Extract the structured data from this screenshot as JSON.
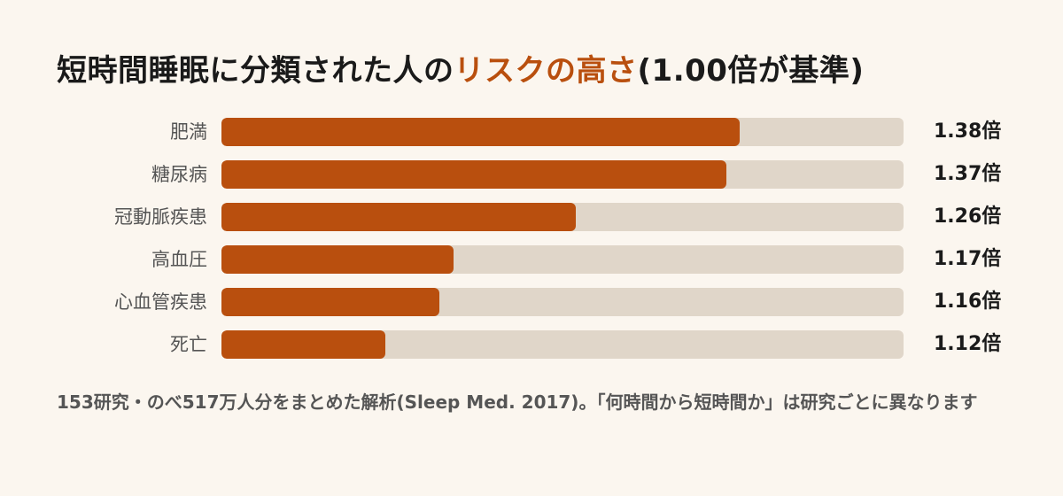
{
  "title": {
    "prefix": "短時間睡眠に分類された人の",
    "accent": "リスクの高さ",
    "suffix": "(1.00倍が基準)"
  },
  "colors": {
    "bar": "#b94f0e",
    "track": "#e0d6c9",
    "background": "#fbf6ef",
    "accent_text": "#b94f0e"
  },
  "chart_data": {
    "type": "bar",
    "orientation": "horizontal",
    "categories": [
      "肥満",
      "糖尿病",
      "冠動脈疾患",
      "高血圧",
      "心血管疾患",
      "死亡"
    ],
    "values": [
      1.38,
      1.37,
      1.26,
      1.17,
      1.16,
      1.12
    ],
    "value_labels": [
      "1.38倍",
      "1.37倍",
      "1.26倍",
      "1.17倍",
      "1.16倍",
      "1.12倍"
    ],
    "xlim": [
      1.0,
      1.5
    ],
    "baseline": 1.0,
    "grid": false
  },
  "note": "153研究・のべ517万人分をまとめた解析(Sleep Med. 2017)。「何時間から短時間か」は研究ごとに異なります"
}
